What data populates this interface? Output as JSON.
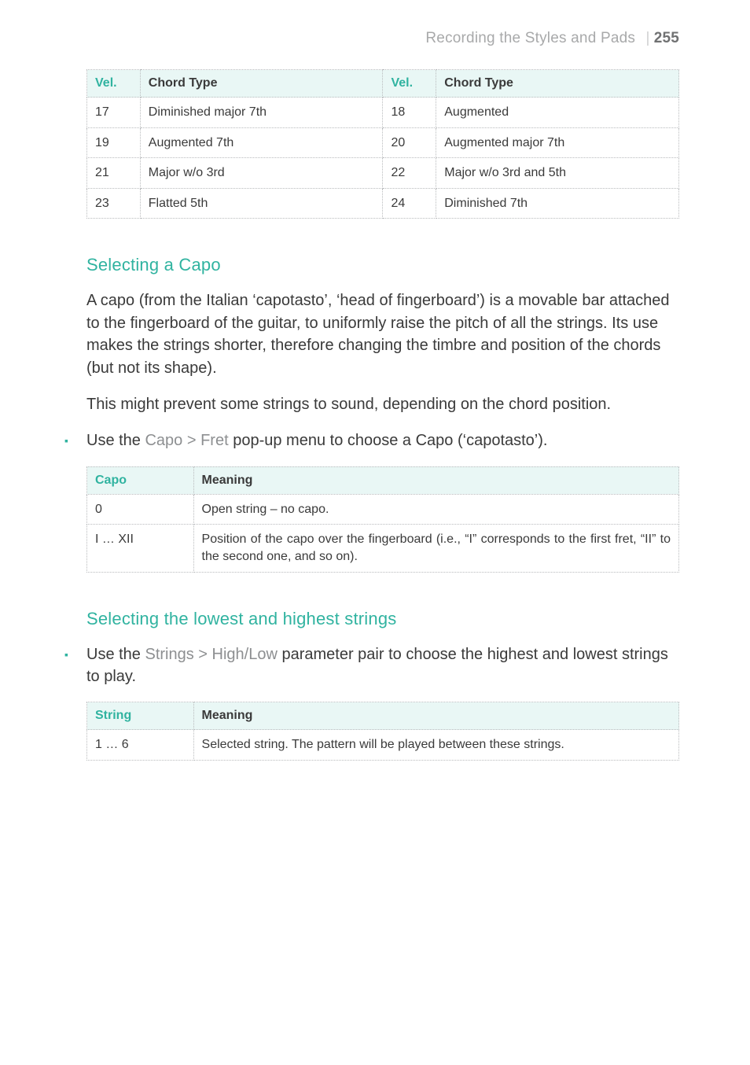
{
  "colors": {
    "accent": "#30b3a0",
    "header_bg": "#e9f7f5",
    "border": "#b9bbbd",
    "body_text": "#3a3a3a",
    "muted_text": "#a8a9aa",
    "ui_path": "#8d8f91"
  },
  "running_head": {
    "title": "Recording the Styles and Pads",
    "divider": "|",
    "page": "255"
  },
  "chord_table": {
    "headers": {
      "vel": "Vel.",
      "type": "Chord Type"
    },
    "rows": [
      {
        "v1": "17",
        "t1": "Diminished major 7th",
        "v2": "18",
        "t2": "Augmented"
      },
      {
        "v1": "19",
        "t1": "Augmented 7th",
        "v2": "20",
        "t2": "Augmented major 7th"
      },
      {
        "v1": "21",
        "t1": "Major w/o 3rd",
        "v2": "22",
        "t2": "Major w/o 3rd and 5th"
      },
      {
        "v1": "23",
        "t1": "Flatted 5th",
        "v2": "24",
        "t2": "Diminished 7th"
      }
    ]
  },
  "capo_section": {
    "heading": "Selecting a Capo",
    "para1": "A capo (from the Italian ‘capotasto’, ‘head of fingerboard’) is a movable bar attached to the fingerboard of the guitar, to uniformly raise the pitch of all the strings. Its use makes the strings shorter, therefore changing the timbre and position of the chords (but not its shape).",
    "para2": "This might prevent some strings to sound, depending on the chord position.",
    "bullet_pre": "Use the ",
    "bullet_path": "Capo > Fret",
    "bullet_post": " pop-up menu to choose a Capo (‘capotasto’).",
    "table": {
      "headers": {
        "capo": "Capo",
        "meaning": "Meaning"
      },
      "rows": [
        {
          "capo": "0",
          "meaning": "Open string – no capo."
        },
        {
          "capo": "I … XII",
          "meaning": "Position of the capo over the fingerboard (i.e., “I” corresponds to the first fret, “II” to the second one, and so on)."
        }
      ]
    }
  },
  "strings_section": {
    "heading": "Selecting the lowest and highest strings",
    "bullet_pre": "Use the ",
    "bullet_path": "Strings > High/Low",
    "bullet_post": " parameter pair to choose the highest and lowest strings to play.",
    "table": {
      "headers": {
        "string": "String",
        "meaning": "Meaning"
      },
      "rows": [
        {
          "string": "1 … 6",
          "meaning": "Selected string. The pattern will be played between these strings."
        }
      ]
    }
  },
  "bullet_glyph": "▪"
}
